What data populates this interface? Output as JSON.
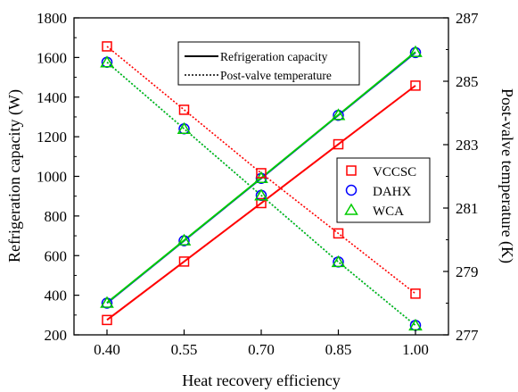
{
  "chart_data": {
    "type": "line",
    "xlabel": "Heat recovery efficiency",
    "ylabel_left": "Refrigeration capacity (W)",
    "ylabel_right": "Post-valve temperature (K)",
    "categories": [
      "0.40",
      "0.55",
      "0.70",
      "0.85",
      "1.00"
    ],
    "ylim_left": [
      200,
      1800
    ],
    "yticks_left": [
      "200",
      "400",
      "600",
      "800",
      "1000",
      "1200",
      "1400",
      "1600",
      "1800"
    ],
    "ylim_right": [
      277,
      287
    ],
    "yticks_right": [
      "277",
      "279",
      "281",
      "283",
      "285",
      "287"
    ],
    "grid": false,
    "line_legend": {
      "placement": "top-center",
      "items": [
        {
          "label": "Refrigeration capacity",
          "style": "solid"
        },
        {
          "label": "Post-valve temperature",
          "style": "dotted"
        }
      ]
    },
    "marker_legend": {
      "placement": "center-right",
      "items": [
        {
          "label": "VCCSC",
          "marker": "square",
          "color": "#ff0000"
        },
        {
          "label": "DAHX",
          "marker": "circle",
          "color": "#0000ff"
        },
        {
          "label": "WCA",
          "marker": "triangle",
          "color": "#00cc00"
        }
      ]
    },
    "series": [
      {
        "name": "VCCSC",
        "quantity": "Refrigeration capacity",
        "axis": "left",
        "line": "solid",
        "color": "#ff0000",
        "marker": "square",
        "values": [
          275,
          570,
          865,
          1162,
          1458
        ]
      },
      {
        "name": "DAHX",
        "quantity": "Refrigeration capacity",
        "axis": "left",
        "line": "solid",
        "color": "#0000ff",
        "marker": "circle",
        "values": [
          360,
          675,
          990,
          1308,
          1625
        ]
      },
      {
        "name": "WCA",
        "quantity": "Refrigeration capacity",
        "axis": "left",
        "line": "solid",
        "color": "#00cc00",
        "marker": "triangle",
        "values": [
          362,
          677,
          992,
          1310,
          1628
        ]
      },
      {
        "name": "VCCSC",
        "quantity": "Post-valve temperature",
        "axis": "right",
        "line": "dotted",
        "color": "#ff0000",
        "marker": "square",
        "values": [
          286.1,
          284.1,
          282.1,
          280.2,
          278.3
        ]
      },
      {
        "name": "DAHX",
        "quantity": "Post-valve temperature",
        "axis": "right",
        "line": "dotted",
        "color": "#0000ff",
        "marker": "circle",
        "values": [
          285.6,
          283.5,
          281.4,
          279.3,
          277.3
        ]
      },
      {
        "name": "WCA",
        "quantity": "Post-valve temperature",
        "axis": "right",
        "line": "dotted",
        "color": "#00cc00",
        "marker": "triangle",
        "values": [
          285.6,
          283.5,
          281.4,
          279.3,
          277.3
        ]
      }
    ]
  }
}
